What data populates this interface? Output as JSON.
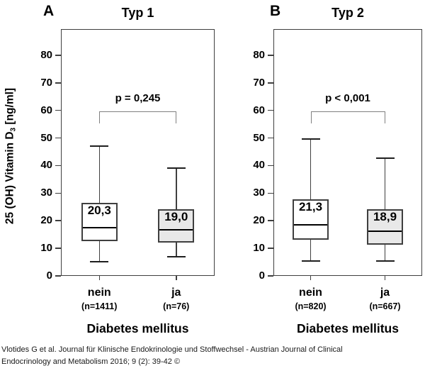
{
  "letters": [
    "A",
    "B"
  ],
  "ylabel_parts": {
    "main": "25 (OH) Vitamin D",
    "sub": "3",
    "unit": " [ng/ml]"
  },
  "caption": {
    "line1": "Vlotides G et al. Journal für Klinische Endokrinologie und Stoffwechsel - Austrian Journal of Clinical",
    "line2": "Endocrinology and Metabolism 2016; 9 (2): 39-42 ©"
  },
  "chart_data": [
    {
      "type": "boxplot",
      "panel": "A",
      "title": "Typ 1",
      "xlabel": "Diabetes mellitus",
      "ylabel": "25 (OH) Vitamin D3 [ng/ml]",
      "ylim": [
        0,
        89.5
      ],
      "yticks": [
        0,
        10,
        20,
        30,
        40,
        50,
        60,
        70,
        80
      ],
      "grid": false,
      "p_label": "p = 0,245",
      "significance_bracket": {
        "y_value": 59.7,
        "between": [
          "nein",
          "ja"
        ]
      },
      "categories": [
        "nein",
        "ja"
      ],
      "n_labels": [
        "(n=1411)",
        "(n=76)"
      ],
      "series": [
        {
          "name": "nein",
          "n": 1411,
          "whisker_low": 5.1,
          "q1": 12.5,
          "median": 17.5,
          "q3": 26.4,
          "whisker_high": 47.0,
          "mean_label": "20,3",
          "box_fill": "#ffffff"
        },
        {
          "name": "ja",
          "n": 76,
          "whisker_low": 7.0,
          "q1": 12.2,
          "median": 16.8,
          "q3": 24.3,
          "whisker_high": 39.0,
          "mean_label": "19,0",
          "box_fill": "#e8e8e8"
        }
      ]
    },
    {
      "type": "boxplot",
      "panel": "B",
      "title": "Typ 2",
      "xlabel": "Diabetes mellitus",
      "ylabel": "25 (OH) Vitamin D3 [ng/ml]",
      "ylim": [
        0,
        89.5
      ],
      "yticks": [
        0,
        10,
        20,
        30,
        40,
        50,
        60,
        70,
        80
      ],
      "grid": false,
      "p_label": "p < 0,001",
      "significance_bracket": {
        "y_value": 59.7,
        "between": [
          "nein",
          "ja"
        ]
      },
      "categories": [
        "nein",
        "ja"
      ],
      "n_labels": [
        "(n=820)",
        "(n=667)"
      ],
      "series": [
        {
          "name": "nein",
          "n": 820,
          "whisker_low": 5.3,
          "q1": 13.2,
          "median": 18.5,
          "q3": 27.9,
          "whisker_high": 49.7,
          "mean_label": "21,3",
          "box_fill": "#ffffff"
        },
        {
          "name": "ja",
          "n": 667,
          "whisker_low": 5.3,
          "q1": 11.4,
          "median": 16.2,
          "q3": 24.3,
          "whisker_high": 42.7,
          "mean_label": "18,9",
          "box_fill": "#e8e8e8"
        }
      ]
    }
  ]
}
